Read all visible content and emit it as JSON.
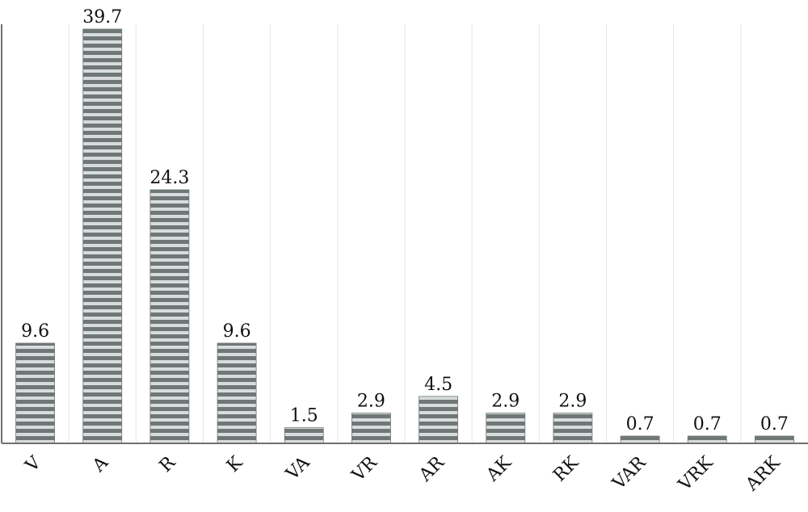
{
  "chart_data": {
    "type": "bar",
    "title": "",
    "xlabel": "",
    "ylabel": "",
    "categories": [
      "V",
      "A",
      "R",
      "K",
      "VA",
      "VR",
      "AR",
      "AK",
      "RK",
      "VAR",
      "VRK",
      "ARK"
    ],
    "values": [
      9.6,
      39.7,
      24.3,
      9.6,
      1.5,
      2.9,
      4.5,
      2.9,
      2.9,
      0.7,
      0.7,
      0.7
    ],
    "value_labels": [
      "9.6",
      "39.7",
      "24.3",
      "9.6",
      "1.5",
      "2.9",
      "4.5",
      "2.9",
      "2.9",
      "0.7",
      "0.7",
      "0.7"
    ],
    "ylim": [
      0,
      39.7
    ],
    "grid": "vertical",
    "legend": "none",
    "bar_fill": "horizontal-stripes",
    "colors": {
      "stripe_dark": "#6f7777",
      "stripe_light": "#d8dcdc",
      "axis": "#707070",
      "grid": "#e6e6e6",
      "label_text": "#111111"
    }
  }
}
